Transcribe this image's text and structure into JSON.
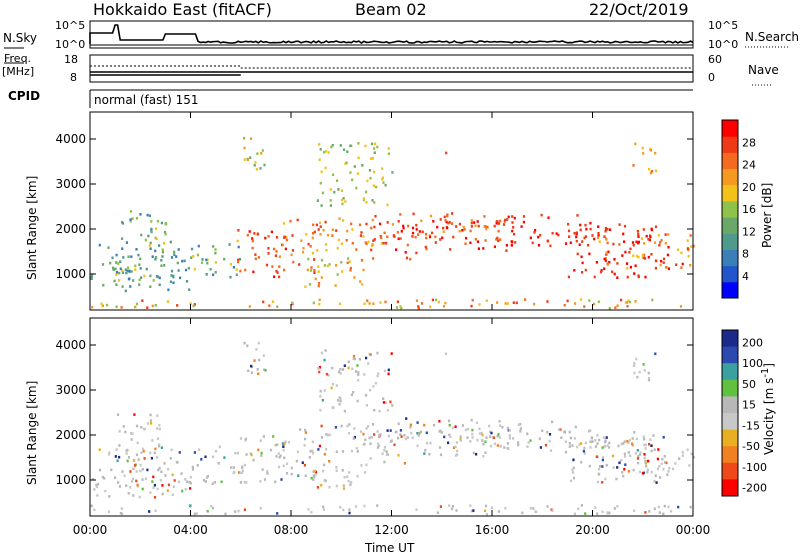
{
  "header": {
    "station": "Hokkaido East (fitACF)",
    "beam": "Beam 02",
    "date": "22/Oct/2019"
  },
  "top_panels": {
    "nsky_label": "N.Sky",
    "nsky_ticks": [
      "10^5",
      "10^0"
    ],
    "nsearch_label": "N.Search",
    "nsearch_ticks": [
      "10^5",
      "10^0"
    ],
    "freq_label_1": "Freq.",
    "freq_label_2": "[MHz]",
    "freq_ticks": [
      "18",
      "8"
    ],
    "nave_label": "Nave",
    "nave_ticks": [
      "60",
      "0"
    ],
    "cpid_label": "CPID",
    "cpid_text": "normal (fast) 151"
  },
  "colors": {
    "power": [
      "#0000ff",
      "#2255cc",
      "#3a7fb8",
      "#4f9a8a",
      "#6aa86a",
      "#8fc24a",
      "#f2c21a",
      "#f59a20",
      "#f46a1e",
      "#f03a16",
      "#ff0000"
    ],
    "velocity": [
      "#1a2a8a",
      "#2a4ab0",
      "#3aa0a0",
      "#60c040",
      "#b8b8b8",
      "#c8c8c8",
      "#e8b020",
      "#f08020",
      "#f04818",
      "#ff0000"
    ],
    "gray_scatter": "#c0c0c0"
  },
  "chart_data": [
    {
      "type": "heatmap",
      "title": "",
      "panel": "power",
      "xlabel": "",
      "ylabel": "Slant Range [km]",
      "xlim": [
        "00:00",
        "00:00"
      ],
      "ylim": [
        200,
        4600
      ],
      "yticks": [
        "1000",
        "2000",
        "3000",
        "4000"
      ],
      "colorbar_label": "Power [dB]",
      "colorbar_ticks": [
        "4",
        "8",
        "12",
        "16",
        "20",
        "24",
        "28"
      ],
      "colorbar_range": [
        0,
        32
      ]
    },
    {
      "type": "heatmap",
      "title": "",
      "panel": "velocity",
      "xlabel": "Time UT",
      "ylabel": "Slant Range [km]",
      "xticks": [
        "00:00",
        "04:00",
        "08:00",
        "12:00",
        "16:00",
        "20:00",
        "00:00"
      ],
      "xlim": [
        "00:00",
        "00:00"
      ],
      "ylim": [
        200,
        4600
      ],
      "yticks": [
        "1000",
        "2000",
        "3000",
        "4000"
      ],
      "colorbar_label": "Velocity [m s",
      "colorbar_ticks": [
        "200",
        "100",
        "50",
        "15",
        "-15",
        "-50",
        "-100",
        "-200"
      ],
      "colorbar_range": [
        -250,
        250
      ]
    }
  ]
}
